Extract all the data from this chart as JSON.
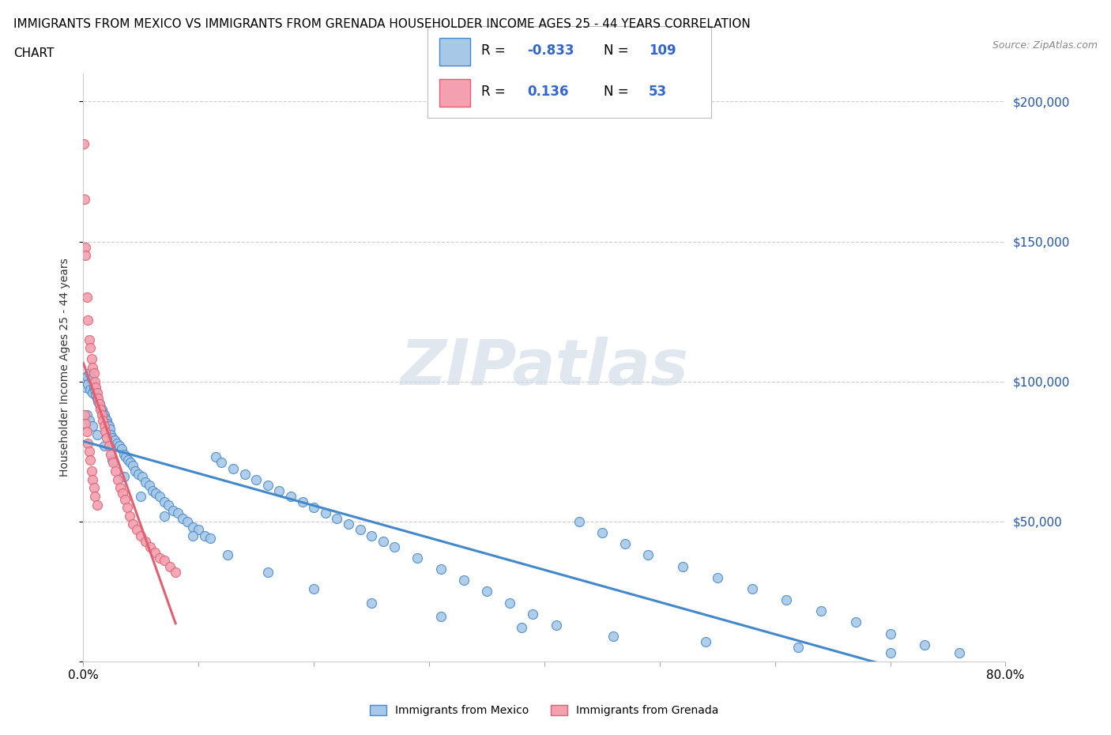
{
  "title_line1": "IMMIGRANTS FROM MEXICO VS IMMIGRANTS FROM GRENADA HOUSEHOLDER INCOME AGES 25 - 44 YEARS CORRELATION",
  "title_line2": "CHART",
  "source": "Source: ZipAtlas.com",
  "ylabel": "Householder Income Ages 25 - 44 years",
  "watermark": "ZIPatlas",
  "legend_blue_R": "-0.833",
  "legend_blue_N": "109",
  "legend_pink_R": "0.136",
  "legend_pink_N": "53",
  "legend_label_blue": "Immigrants from Mexico",
  "legend_label_pink": "Immigrants from Grenada",
  "blue_color": "#a8c8e8",
  "pink_color": "#f4a0b0",
  "blue_line_color": "#4488cc",
  "pink_line_color": "#e06070",
  "xlim": [
    0.0,
    0.8
  ],
  "ylim": [
    0,
    210000
  ],
  "xticks": [
    0.0,
    0.1,
    0.2,
    0.3,
    0.4,
    0.5,
    0.6,
    0.7,
    0.8
  ],
  "yticks": [
    0,
    50000,
    100000,
    150000,
    200000
  ],
  "ytick_labels": [
    "",
    "$50,000",
    "$100,000",
    "$150,000",
    "$200,000"
  ],
  "blue_scatter_x": [
    0.001,
    0.002,
    0.003,
    0.004,
    0.005,
    0.006,
    0.007,
    0.008,
    0.009,
    0.01,
    0.011,
    0.012,
    0.013,
    0.014,
    0.015,
    0.016,
    0.017,
    0.018,
    0.019,
    0.02,
    0.021,
    0.022,
    0.023,
    0.024,
    0.025,
    0.027,
    0.029,
    0.031,
    0.033,
    0.035,
    0.037,
    0.039,
    0.041,
    0.043,
    0.045,
    0.048,
    0.051,
    0.054,
    0.057,
    0.06,
    0.063,
    0.066,
    0.07,
    0.074,
    0.078,
    0.082,
    0.086,
    0.09,
    0.095,
    0.1,
    0.105,
    0.11,
    0.115,
    0.12,
    0.13,
    0.14,
    0.15,
    0.16,
    0.17,
    0.18,
    0.19,
    0.2,
    0.21,
    0.22,
    0.23,
    0.24,
    0.25,
    0.26,
    0.27,
    0.29,
    0.31,
    0.33,
    0.35,
    0.37,
    0.39,
    0.41,
    0.43,
    0.45,
    0.47,
    0.49,
    0.52,
    0.55,
    0.58,
    0.61,
    0.64,
    0.67,
    0.7,
    0.73,
    0.76,
    0.003,
    0.005,
    0.008,
    0.012,
    0.018,
    0.025,
    0.035,
    0.05,
    0.07,
    0.095,
    0.125,
    0.16,
    0.2,
    0.25,
    0.31,
    0.38,
    0.46,
    0.54,
    0.62,
    0.7
  ],
  "blue_scatter_y": [
    100000,
    98000,
    102000,
    99000,
    103000,
    97000,
    101000,
    96000,
    98000,
    97000,
    95000,
    94000,
    93000,
    92000,
    91000,
    90000,
    89000,
    88000,
    87000,
    86000,
    85000,
    84000,
    83000,
    81000,
    80000,
    79000,
    78000,
    77000,
    76000,
    74000,
    73000,
    72000,
    71000,
    70000,
    68000,
    67000,
    66000,
    64000,
    63000,
    61000,
    60000,
    59000,
    57000,
    56000,
    54000,
    53000,
    51000,
    50000,
    48000,
    47000,
    45000,
    44000,
    73000,
    71000,
    69000,
    67000,
    65000,
    63000,
    61000,
    59000,
    57000,
    55000,
    53000,
    51000,
    49000,
    47000,
    45000,
    43000,
    41000,
    37000,
    33000,
    29000,
    25000,
    21000,
    17000,
    13000,
    50000,
    46000,
    42000,
    38000,
    34000,
    30000,
    26000,
    22000,
    18000,
    14000,
    10000,
    6000,
    3000,
    88000,
    86000,
    84000,
    81000,
    77000,
    72000,
    66000,
    59000,
    52000,
    45000,
    38000,
    32000,
    26000,
    21000,
    16000,
    12000,
    9000,
    7000,
    5000,
    3000
  ],
  "pink_scatter_x": [
    0.0005,
    0.001,
    0.0015,
    0.002,
    0.003,
    0.004,
    0.005,
    0.006,
    0.007,
    0.008,
    0.009,
    0.01,
    0.011,
    0.012,
    0.013,
    0.014,
    0.015,
    0.016,
    0.017,
    0.018,
    0.019,
    0.02,
    0.022,
    0.024,
    0.026,
    0.028,
    0.03,
    0.032,
    0.034,
    0.036,
    0.038,
    0.04,
    0.043,
    0.046,
    0.05,
    0.054,
    0.058,
    0.062,
    0.066,
    0.07,
    0.075,
    0.08,
    0.001,
    0.002,
    0.003,
    0.004,
    0.005,
    0.006,
    0.007,
    0.008,
    0.009,
    0.01,
    0.012
  ],
  "pink_scatter_y": [
    185000,
    165000,
    148000,
    145000,
    130000,
    122000,
    115000,
    112000,
    108000,
    105000,
    103000,
    100000,
    98000,
    96000,
    94000,
    92000,
    90000,
    88000,
    86000,
    84000,
    82000,
    80000,
    77000,
    74000,
    71000,
    68000,
    65000,
    62000,
    60000,
    58000,
    55000,
    52000,
    49000,
    47000,
    45000,
    43000,
    41000,
    39000,
    37000,
    36000,
    34000,
    32000,
    88000,
    85000,
    82000,
    78000,
    75000,
    72000,
    68000,
    65000,
    62000,
    59000,
    56000
  ]
}
